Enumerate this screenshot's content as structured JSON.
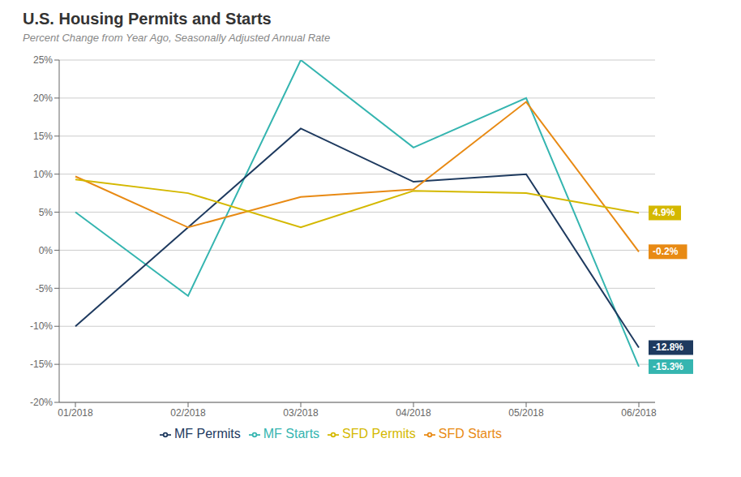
{
  "chart_data": {
    "type": "line",
    "title": "U.S. Housing Permits and Starts",
    "subtitle": "Percent Change from Year Ago, Seasonally Adjusted Annual Rate",
    "categories": [
      "01/2018",
      "02/2018",
      "03/2018",
      "04/2018",
      "05/2018",
      "06/2018"
    ],
    "series": [
      {
        "name": "MF Starts",
        "color": "#35b5b0",
        "values": [
          5.0,
          -6.0,
          25.0,
          13.5,
          20.0,
          -15.3
        ]
      },
      {
        "name": "MF Permits",
        "color": "#1e3a5f",
        "values": [
          -10.0,
          3.0,
          16.0,
          9.0,
          10.0,
          -12.8
        ]
      },
      {
        "name": "SFD Starts",
        "color": "#e88a14",
        "values": [
          9.7,
          3.0,
          7.0,
          8.0,
          19.5,
          -0.2
        ]
      },
      {
        "name": "SFD Permits",
        "color": "#d4b800",
        "values": [
          9.3,
          7.5,
          3.0,
          7.8,
          7.5,
          4.9
        ]
      }
    ],
    "ylim": [
      -20,
      25
    ],
    "yticks": [
      {
        "value": -20,
        "label": "-20%"
      },
      {
        "value": -15,
        "label": "-15%"
      },
      {
        "value": -10,
        "label": "-10%"
      },
      {
        "value": -5,
        "label": "-5%"
      },
      {
        "value": 0,
        "label": "0%"
      },
      {
        "value": 5,
        "label": "5%"
      },
      {
        "value": 10,
        "label": "10%"
      },
      {
        "value": 15,
        "label": "15%"
      },
      {
        "value": 20,
        "label": "20%"
      },
      {
        "value": 25,
        "label": "25%"
      }
    ],
    "grid": true,
    "legend": "bottom",
    "annotations": [
      {
        "text": "4.9%",
        "value": 4.9,
        "series": "SFD Permits"
      },
      {
        "text": "-0.2%",
        "value": -0.2,
        "series": "SFD Starts"
      },
      {
        "text": "-12.8%",
        "value": -12.8,
        "series": "MF Permits"
      },
      {
        "text": "-15.3%",
        "value": -15.3,
        "series": "MF Starts"
      }
    ]
  }
}
